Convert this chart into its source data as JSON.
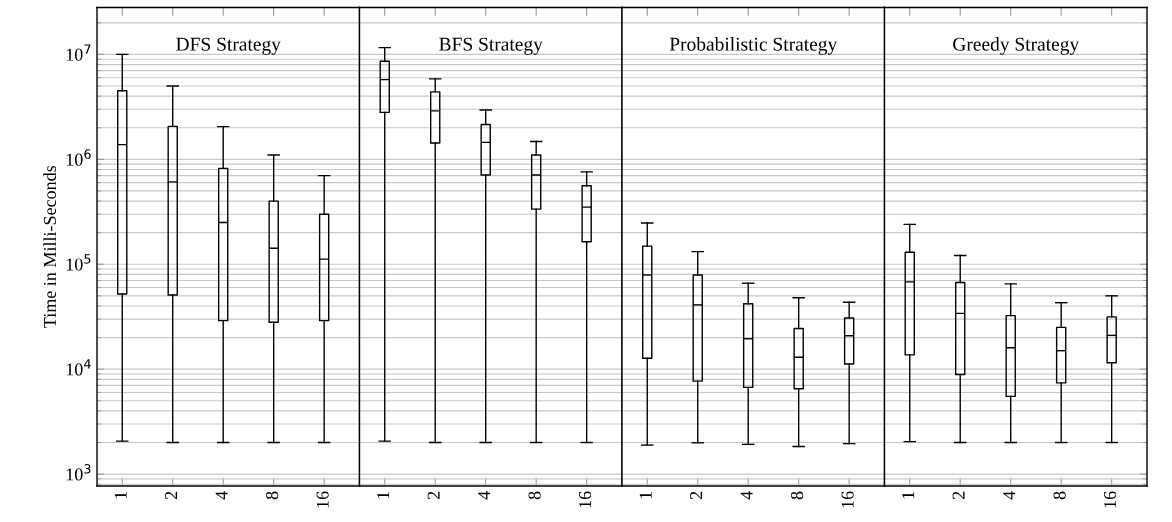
{
  "chart_data": [
    {
      "type": "box",
      "title": "DFS Strategy",
      "ylabel": "Time in Milli-Seconds",
      "categories": [
        "1",
        "2",
        "4",
        "8",
        "16"
      ],
      "log": true,
      "grid": "y",
      "ylim": [
        770,
        28000000
      ],
      "yticks": [
        {
          "value": 1000,
          "label": "10$^{3}$"
        },
        {
          "value": 10000,
          "label": "10$^{4}$"
        },
        {
          "value": 100000,
          "label": "10$^{5}$"
        },
        {
          "value": 1000000,
          "label": "10$^{6}$"
        },
        {
          "value": 10000000,
          "label": "10$^{7}$"
        }
      ],
      "boxes": [
        {
          "low": 2060,
          "q1": 52000,
          "median": 1380000,
          "q3": 4500000,
          "high": 10000000
        },
        {
          "low": 2000,
          "q1": 51000,
          "median": 610000,
          "q3": 2060000,
          "high": 5000000
        },
        {
          "low": 2000,
          "q1": 29000,
          "median": 250000,
          "q3": 820000,
          "high": 2050000
        },
        {
          "low": 2000,
          "q1": 28000,
          "median": 142000,
          "q3": 400000,
          "high": 1100000
        },
        {
          "low": 2000,
          "q1": 29000,
          "median": 112000,
          "q3": 300000,
          "high": 700000
        }
      ]
    },
    {
      "type": "box",
      "title": "BFS Strategy",
      "categories": [
        "1",
        "2",
        "4",
        "8",
        "16"
      ],
      "log": true,
      "grid": "y",
      "tick_labels": "x",
      "ylim": [
        770,
        28000000
      ],
      "boxes": [
        {
          "low": 2060,
          "q1": 2800000,
          "median": 5750000,
          "q3": 8600000,
          "high": 11600000
        },
        {
          "low": 2000,
          "q1": 1430000,
          "median": 2900000,
          "q3": 4400000,
          "high": 5850000
        },
        {
          "low": 2000,
          "q1": 710000,
          "median": 1450000,
          "q3": 2150000,
          "high": 2950000
        },
        {
          "low": 2000,
          "q1": 335000,
          "median": 710000,
          "q3": 1100000,
          "high": 1480000
        },
        {
          "low": 2000,
          "q1": 164000,
          "median": 350000,
          "q3": 560000,
          "high": 760000
        }
      ]
    },
    {
      "type": "box",
      "title": "Probabilistic Strategy",
      "categories": [
        "1",
        "2",
        "4",
        "8",
        "16"
      ],
      "log": true,
      "grid": "y",
      "tick_labels": "x",
      "ylim": [
        770,
        28000000
      ],
      "boxes": [
        {
          "low": 1890,
          "q1": 12700,
          "median": 79000,
          "q3": 149000,
          "high": 247000
        },
        {
          "low": 1990,
          "q1": 7700,
          "median": 41000,
          "q3": 79000,
          "high": 132000
        },
        {
          "low": 1920,
          "q1": 6700,
          "median": 19500,
          "q3": 42000,
          "high": 66000
        },
        {
          "low": 1830,
          "q1": 6500,
          "median": 13000,
          "q3": 24400,
          "high": 48000
        },
        {
          "low": 1950,
          "q1": 11200,
          "median": 20800,
          "q3": 30700,
          "high": 43500
        }
      ]
    },
    {
      "type": "box",
      "title": "Greedy Strategy",
      "categories": [
        "1",
        "2",
        "4",
        "8",
        "16"
      ],
      "log": true,
      "grid": "y",
      "tick_labels": "x",
      "ylim": [
        770,
        28000000
      ],
      "boxes": [
        {
          "low": 2040,
          "q1": 13700,
          "median": 68000,
          "q3": 130000,
          "high": 240000
        },
        {
          "low": 2000,
          "q1": 8900,
          "median": 34000,
          "q3": 67000,
          "high": 121000
        },
        {
          "low": 2000,
          "q1": 5500,
          "median": 16000,
          "q3": 32400,
          "high": 65000
        },
        {
          "low": 2000,
          "q1": 7400,
          "median": 15000,
          "q3": 25000,
          "high": 43000
        },
        {
          "low": 2000,
          "q1": 11500,
          "median": 21000,
          "q3": 31500,
          "high": 50000
        }
      ]
    }
  ]
}
